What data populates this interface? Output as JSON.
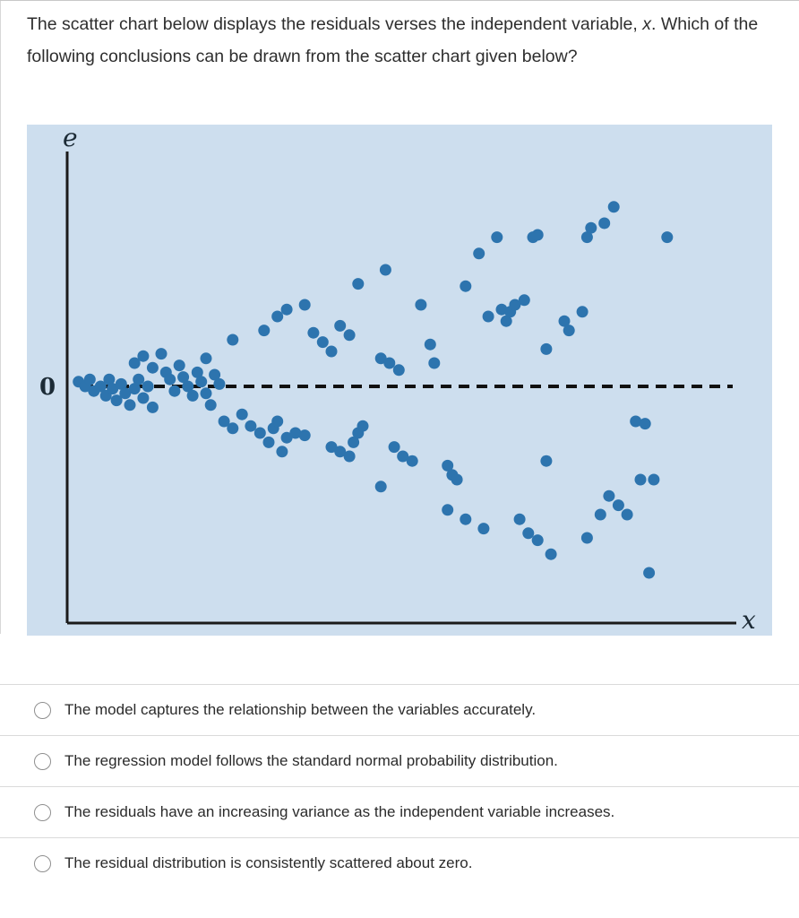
{
  "question": {
    "line1_prefix": "The scatter chart below displays the residuals verses the independent variable, ",
    "variable": "x",
    "line1_suffix": ".",
    "line2": "Which of the following conclusions can be drawn from the scatter chart given below?"
  },
  "chart": {
    "bg_color": "#cddeee",
    "dot_color": "#2d74ae",
    "axis_color": "#1a1a1a",
    "y_axis_label": "e",
    "x_axis_label": "x",
    "zero_label": "0"
  },
  "chart_data": {
    "type": "scatter",
    "title": "Residual plot: residuals (e) versus independent variable (x), showing variance increasing with x (funnel shape)",
    "xlabel": "x",
    "ylabel": "e",
    "zero_line": true,
    "legend": false,
    "grid": false,
    "x_range": [
      0,
      100
    ],
    "e_range": [
      -1,
      1
    ],
    "points": [
      [
        1.7,
        0.02
      ],
      [
        2.7,
        0.0
      ],
      [
        3.4,
        0.03
      ],
      [
        4.0,
        -0.02
      ],
      [
        5.0,
        0.0
      ],
      [
        5.8,
        -0.04
      ],
      [
        6.3,
        0.03
      ],
      [
        6.8,
        -0.01
      ],
      [
        7.4,
        -0.06
      ],
      [
        8.1,
        0.01
      ],
      [
        8.7,
        -0.03
      ],
      [
        9.4,
        -0.08
      ],
      [
        10.1,
        -0.01
      ],
      [
        10.7,
        0.03
      ],
      [
        11.4,
        -0.05
      ],
      [
        12.1,
        0.0
      ],
      [
        12.8,
        -0.09
      ],
      [
        10.1,
        0.1
      ],
      [
        11.4,
        0.13
      ],
      [
        12.8,
        0.08
      ],
      [
        14.1,
        0.14
      ],
      [
        14.8,
        0.06
      ],
      [
        15.4,
        0.03
      ],
      [
        16.1,
        -0.02
      ],
      [
        16.8,
        0.09
      ],
      [
        17.4,
        0.04
      ],
      [
        18.1,
        0.0
      ],
      [
        18.8,
        -0.04
      ],
      [
        19.5,
        0.06
      ],
      [
        20.1,
        0.02
      ],
      [
        20.8,
        -0.03
      ],
      [
        21.5,
        -0.08
      ],
      [
        22.1,
        0.05
      ],
      [
        22.8,
        0.01
      ],
      [
        20.8,
        0.12
      ],
      [
        24.8,
        0.2
      ],
      [
        29.5,
        0.24
      ],
      [
        31.5,
        0.3
      ],
      [
        32.9,
        0.33
      ],
      [
        35.6,
        0.35
      ],
      [
        36.9,
        0.23
      ],
      [
        38.3,
        0.19
      ],
      [
        39.6,
        0.15
      ],
      [
        40.9,
        0.26
      ],
      [
        42.3,
        0.22
      ],
      [
        43.6,
        0.44
      ],
      [
        47.7,
        0.5
      ],
      [
        47.0,
        0.12
      ],
      [
        48.3,
        0.1
      ],
      [
        49.7,
        0.07
      ],
      [
        53.0,
        0.35
      ],
      [
        54.4,
        0.18
      ],
      [
        55.0,
        0.1
      ],
      [
        59.7,
        0.43
      ],
      [
        61.7,
        0.57
      ],
      [
        64.4,
        0.64
      ],
      [
        63.1,
        0.3
      ],
      [
        65.1,
        0.33
      ],
      [
        65.8,
        0.28
      ],
      [
        66.4,
        0.32
      ],
      [
        67.1,
        0.35
      ],
      [
        68.5,
        0.37
      ],
      [
        69.8,
        0.64
      ],
      [
        70.5,
        0.65
      ],
      [
        71.8,
        0.16
      ],
      [
        74.5,
        0.28
      ],
      [
        75.2,
        0.24
      ],
      [
        77.2,
        0.32
      ],
      [
        77.9,
        0.64
      ],
      [
        78.5,
        0.68
      ],
      [
        80.5,
        0.7
      ],
      [
        81.9,
        0.77
      ],
      [
        89.9,
        0.64
      ],
      [
        23.5,
        -0.15
      ],
      [
        24.8,
        -0.18
      ],
      [
        26.2,
        -0.12
      ],
      [
        27.5,
        -0.17
      ],
      [
        28.9,
        -0.2
      ],
      [
        30.2,
        -0.24
      ],
      [
        30.9,
        -0.18
      ],
      [
        31.5,
        -0.15
      ],
      [
        32.2,
        -0.28
      ],
      [
        32.9,
        -0.22
      ],
      [
        34.2,
        -0.2
      ],
      [
        35.6,
        -0.21
      ],
      [
        39.6,
        -0.26
      ],
      [
        40.9,
        -0.28
      ],
      [
        42.3,
        -0.3
      ],
      [
        42.9,
        -0.24
      ],
      [
        43.6,
        -0.2
      ],
      [
        44.3,
        -0.17
      ],
      [
        47.0,
        -0.43
      ],
      [
        49.0,
        -0.26
      ],
      [
        50.3,
        -0.3
      ],
      [
        51.7,
        -0.32
      ],
      [
        57.0,
        -0.34
      ],
      [
        57.7,
        -0.38
      ],
      [
        58.4,
        -0.4
      ],
      [
        57.0,
        -0.53
      ],
      [
        59.7,
        -0.57
      ],
      [
        62.4,
        -0.61
      ],
      [
        67.8,
        -0.57
      ],
      [
        69.1,
        -0.63
      ],
      [
        70.5,
        -0.66
      ],
      [
        71.8,
        -0.32
      ],
      [
        72.5,
        -0.72
      ],
      [
        77.9,
        -0.65
      ],
      [
        79.9,
        -0.55
      ],
      [
        81.2,
        -0.47
      ],
      [
        82.6,
        -0.51
      ],
      [
        83.9,
        -0.55
      ],
      [
        85.2,
        -0.15
      ],
      [
        86.6,
        -0.16
      ],
      [
        85.9,
        -0.4
      ],
      [
        87.9,
        -0.4
      ],
      [
        87.2,
        -0.8
      ]
    ]
  },
  "options": [
    {
      "label": "The model captures the relationship between the variables accurately."
    },
    {
      "label": "The regression model follows the standard normal probability distribution."
    },
    {
      "label": "The residuals have an increasing variance as the independent variable increases."
    },
    {
      "label": "The residual distribution is consistently scattered about zero."
    }
  ]
}
